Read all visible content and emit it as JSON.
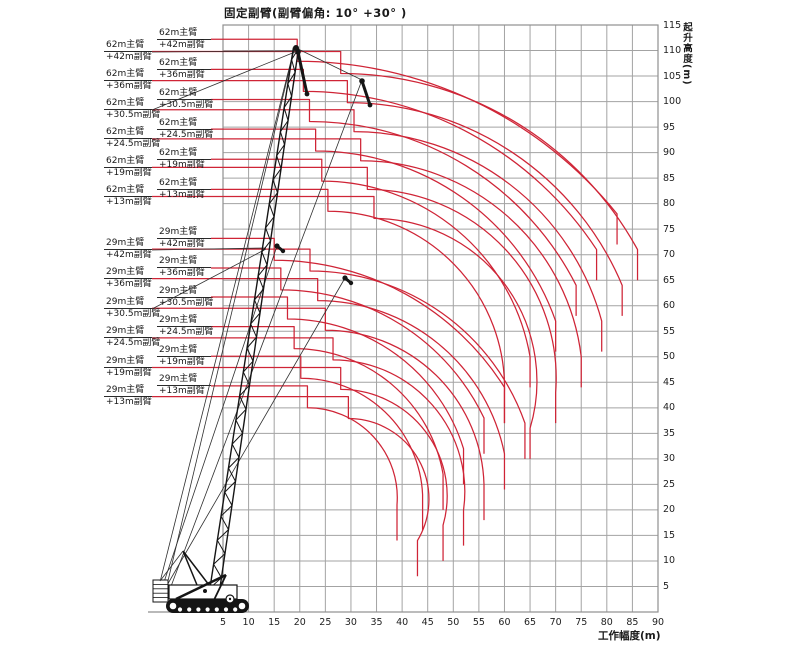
{
  "title": "固定副臂(副臂偏角: 10° +30° )",
  "axes": {
    "x_label": "工作幅度(m)",
    "y_label": "起升高度(m)",
    "x_ticks": [
      5,
      10,
      15,
      20,
      25,
      30,
      35,
      40,
      45,
      50,
      55,
      60,
      65,
      70,
      75,
      80,
      85,
      90
    ],
    "y_ticks": [
      115,
      110,
      105,
      100,
      95,
      90,
      85,
      80,
      75,
      70,
      65,
      60,
      55,
      50,
      45,
      40,
      35,
      30,
      25,
      20,
      15,
      10,
      5
    ]
  },
  "colors": {
    "curve": "#cf2436",
    "grid": "#a3a3a3",
    "border": "#8f8f8f",
    "crane": "#151515",
    "leader": "#2f2f2f",
    "text": "#1a1a1a"
  },
  "chart_data": {
    "type": "line",
    "title": "固定副臂(副臂偏角: 10° +30° )",
    "xlabel": "工作幅度(m)",
    "ylabel": "起升高度(m)",
    "xlim": [
      5,
      90
    ],
    "ylim": [
      0,
      115
    ],
    "grid": true,
    "legend_position": "left-config-labels",
    "description": "履带起重机固定副臂工况起升高度-工作幅度曲线族: 每条曲线以起始高度(start_h)、转折幅度(kink_r)、末端点(end_r,end_h)及末端垂直段(end_drop)描述, 单位均为米",
    "series": [
      {
        "name": "62m主臂+42m副臂(10°)",
        "main": "62m主臂",
        "jib": "+42m副臂",
        "group": "62m",
        "offset_deg": 10,
        "col": "inner",
        "start_h": 112.2,
        "kink_r": 19.5,
        "kink_drop": 4.3,
        "end_r": 82,
        "end_h": 78,
        "end_drop": 6
      },
      {
        "name": "62m主臂+42m副臂(30°)",
        "main": "62m主臂",
        "jib": "+42m副臂",
        "group": "62m",
        "offset_deg": 30,
        "col": "outer",
        "start_h": 109.8,
        "kink_r": 28.0,
        "kink_drop": 4.3,
        "end_r": 86,
        "end_h": 71,
        "end_drop": 6
      },
      {
        "name": "62m主臂+36m副臂(10°)",
        "main": "62m主臂",
        "jib": "+36m副臂",
        "group": "62m",
        "offset_deg": 10,
        "col": "inner",
        "start_h": 106.3,
        "kink_r": 20.7,
        "kink_drop": 4.3,
        "end_r": 78,
        "end_h": 71,
        "end_drop": 6
      },
      {
        "name": "62m主臂+36m副臂(30°)",
        "main": "62m主臂",
        "jib": "+36m副臂",
        "group": "62m",
        "offset_deg": 30,
        "col": "outer",
        "start_h": 104.1,
        "kink_r": 29.3,
        "kink_drop": 4.3,
        "end_r": 83,
        "end_h": 64,
        "end_drop": 6
      },
      {
        "name": "62m主臂+30.5m副臂(10°)",
        "main": "62m主臂",
        "jib": "+30.5m副臂",
        "group": "62m",
        "offset_deg": 10,
        "col": "inner",
        "start_h": 100.4,
        "kink_r": 21.9,
        "kink_drop": 4.3,
        "end_r": 74,
        "end_h": 64,
        "end_drop": 6
      },
      {
        "name": "62m主臂+30.5m副臂(30°)",
        "main": "62m主臂",
        "jib": "+30.5m副臂",
        "group": "62m",
        "offset_deg": 30,
        "col": "outer",
        "start_h": 98.4,
        "kink_r": 30.6,
        "kink_drop": 4.3,
        "end_r": 79,
        "end_h": 57,
        "end_drop": 6
      },
      {
        "name": "62m主臂+24.5m副臂(10°)",
        "main": "62m主臂",
        "jib": "+24.5m副臂",
        "group": "62m",
        "offset_deg": 10,
        "col": "inner",
        "start_h": 94.6,
        "kink_r": 23.1,
        "kink_drop": 4.3,
        "end_r": 70,
        "end_h": 57,
        "end_drop": 6
      },
      {
        "name": "62m主臂+24.5m副臂(30°)",
        "main": "62m主臂",
        "jib": "+24.5m副臂",
        "group": "62m",
        "offset_deg": 30,
        "col": "outer",
        "start_h": 92.7,
        "kink_r": 31.9,
        "kink_drop": 4.3,
        "end_r": 75,
        "end_h": 50,
        "end_drop": 6
      },
      {
        "name": "62m主臂+19m副臂(10°)",
        "main": "62m主臂",
        "jib": "+19m副臂",
        "group": "62m",
        "offset_deg": 10,
        "col": "inner",
        "start_h": 88.7,
        "kink_r": 24.3,
        "kink_drop": 4.3,
        "end_r": 65,
        "end_h": 50,
        "end_drop": 6
      },
      {
        "name": "62m主臂+19m副臂(30°)",
        "main": "62m主臂",
        "jib": "+19m副臂",
        "group": "62m",
        "offset_deg": 30,
        "col": "outer",
        "start_h": 87.1,
        "kink_r": 33.2,
        "kink_drop": 4.3,
        "end_r": 70,
        "end_h": 43,
        "end_drop": 6
      },
      {
        "name": "62m主臂+13m副臂(10°)",
        "main": "62m主臂",
        "jib": "+13m副臂",
        "group": "62m",
        "offset_deg": 10,
        "col": "inner",
        "start_h": 82.8,
        "kink_r": 25.5,
        "kink_drop": 4.3,
        "end_r": 60,
        "end_h": 43,
        "end_drop": 6
      },
      {
        "name": "62m主臂+13m副臂(30°)",
        "main": "62m主臂",
        "jib": "+13m副臂",
        "group": "62m",
        "offset_deg": 30,
        "col": "outer",
        "start_h": 81.4,
        "kink_r": 34.5,
        "kink_drop": 4.3,
        "end_r": 65,
        "end_h": 36,
        "end_drop": 6
      },
      {
        "name": "29m主臂+42m副臂(10°)",
        "main": "29m主臂",
        "jib": "+42m副臂",
        "group": "29m",
        "offset_deg": 10,
        "col": "inner",
        "start_h": 73.2,
        "kink_r": 15.0,
        "kink_drop": 4.3,
        "end_r": 60,
        "end_h": 44,
        "end_drop": 7
      },
      {
        "name": "29m主臂+42m副臂(30°)",
        "main": "29m主臂",
        "jib": "+42m副臂",
        "group": "29m",
        "offset_deg": 30,
        "col": "outer",
        "start_h": 71.1,
        "kink_r": 22.0,
        "kink_drop": 4.3,
        "end_r": 64,
        "end_h": 37,
        "end_drop": 7
      },
      {
        "name": "29m主臂+36m副臂(10°)",
        "main": "29m主臂",
        "jib": "+36m副臂",
        "group": "29m",
        "offset_deg": 10,
        "col": "inner",
        "start_h": 67.4,
        "kink_r": 16.3,
        "kink_drop": 4.3,
        "end_r": 56,
        "end_h": 38,
        "end_drop": 7
      },
      {
        "name": "29m主臂+36m副臂(30°)",
        "main": "29m主臂",
        "jib": "+36m副臂",
        "group": "29m",
        "offset_deg": 30,
        "col": "outer",
        "start_h": 65.3,
        "kink_r": 23.5,
        "kink_drop": 4.3,
        "end_r": 60,
        "end_h": 31,
        "end_drop": 7
      },
      {
        "name": "29m主臂+30.5m副臂(10°)",
        "main": "29m主臂",
        "jib": "+30.5m副臂",
        "group": "29m",
        "offset_deg": 10,
        "col": "inner",
        "start_h": 61.7,
        "kink_r": 17.6,
        "kink_drop": 4.3,
        "end_r": 52,
        "end_h": 32,
        "end_drop": 7
      },
      {
        "name": "29m主臂+30.5m副臂(30°)",
        "main": "29m主臂",
        "jib": "+30.5m副臂",
        "group": "29m",
        "offset_deg": 30,
        "col": "outer",
        "start_h": 59.5,
        "kink_r": 25.0,
        "kink_drop": 4.3,
        "end_r": 56,
        "end_h": 25,
        "end_drop": 7
      },
      {
        "name": "29m主臂+24.5m副臂(10°)",
        "main": "29m主臂",
        "jib": "+24.5m副臂",
        "group": "29m",
        "offset_deg": 10,
        "col": "inner",
        "start_h": 55.9,
        "kink_r": 18.9,
        "kink_drop": 4.3,
        "end_r": 48,
        "end_h": 27,
        "end_drop": 7
      },
      {
        "name": "29m主臂+24.5m副臂(30°)",
        "main": "29m主臂",
        "jib": "+24.5m副臂",
        "group": "29m",
        "offset_deg": 30,
        "col": "outer",
        "start_h": 53.7,
        "kink_r": 26.5,
        "kink_drop": 4.3,
        "end_r": 52,
        "end_h": 20,
        "end_drop": 7
      },
      {
        "name": "29m主臂+19m副臂(10°)",
        "main": "29m主臂",
        "jib": "+19m副臂",
        "group": "29m",
        "offset_deg": 10,
        "col": "inner",
        "start_h": 50.1,
        "kink_r": 20.2,
        "kink_drop": 4.3,
        "end_r": 44,
        "end_h": 23,
        "end_drop": 7
      },
      {
        "name": "29m主臂+19m副臂(30°)",
        "main": "29m主臂",
        "jib": "+19m副臂",
        "group": "29m",
        "offset_deg": 30,
        "col": "outer",
        "start_h": 47.9,
        "kink_r": 28.0,
        "kink_drop": 4.3,
        "end_r": 48,
        "end_h": 17,
        "end_drop": 7
      },
      {
        "name": "29m主臂+13m副臂(10°)",
        "main": "29m主臂",
        "jib": "+13m副臂",
        "group": "29m",
        "offset_deg": 10,
        "col": "inner",
        "start_h": 44.3,
        "kink_r": 21.5,
        "kink_drop": 4.3,
        "end_r": 39,
        "end_h": 21,
        "end_drop": 7
      },
      {
        "name": "29m主臂+13m副臂(30°)",
        "main": "29m主臂",
        "jib": "+13m副臂",
        "group": "29m",
        "offset_deg": 30,
        "col": "outer",
        "start_h": 42.2,
        "kink_r": 29.5,
        "kink_drop": 4.3,
        "end_r": 43,
        "end_h": 14,
        "end_drop": 7
      }
    ]
  }
}
